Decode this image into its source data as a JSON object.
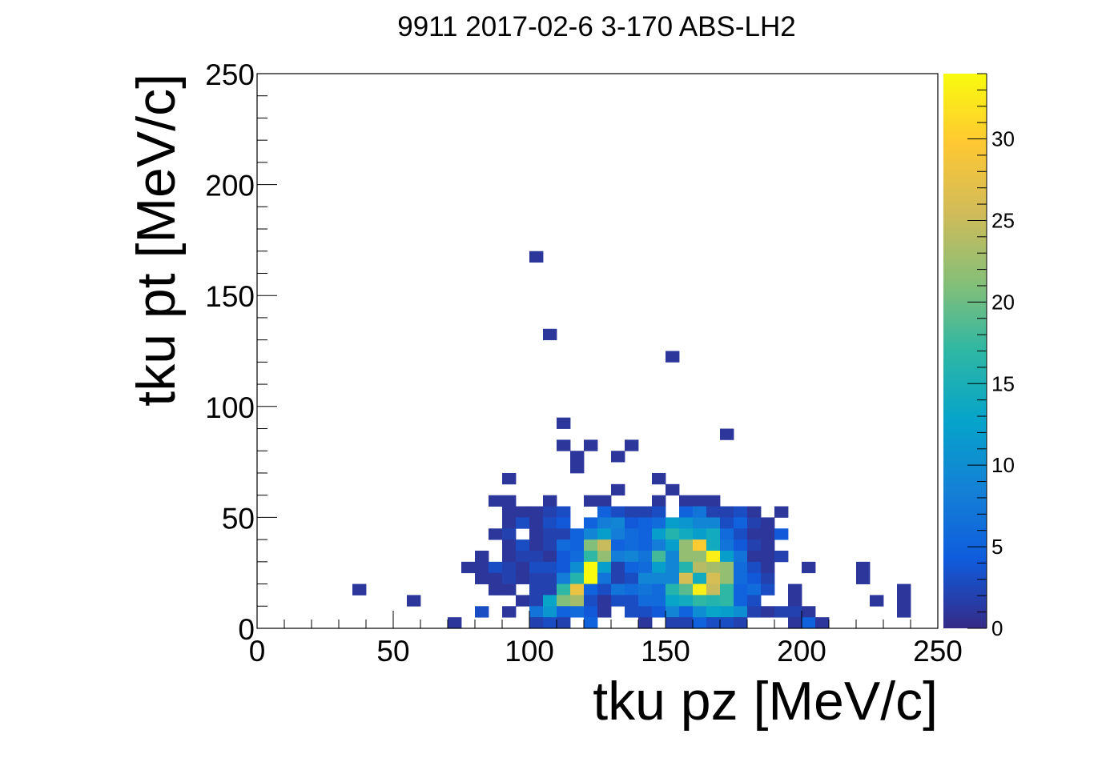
{
  "chart_data": {
    "type": "heatmap",
    "title": "9911 2017-02-6 3-170 ABS-LH2",
    "xlabel": "tku pz [MeV/c]",
    "ylabel": "tku pt [MeV/c]",
    "xlim": [
      0,
      250
    ],
    "ylim": [
      0,
      250
    ],
    "x_ticks": [
      "0",
      "50",
      "100",
      "150",
      "200",
      "250"
    ],
    "y_ticks": [
      "0",
      "50",
      "100",
      "150",
      "200",
      "250"
    ],
    "bin_width": 5,
    "bin_height": 5,
    "colorbar": {
      "range": [
        0,
        34
      ],
      "ticks": [
        "0",
        "5",
        "10",
        "15",
        "20",
        "25",
        "30"
      ],
      "palette": [
        "#352a87",
        "#0f5cdd",
        "#1481d6",
        "#06a4ca",
        "#2eb7a4",
        "#87bf77",
        "#d1bb59",
        "#fec832",
        "#f9fb0e"
      ]
    },
    "cells": [
      {
        "x": 102.5,
        "y": 167.5,
        "v": 1
      },
      {
        "x": 107.5,
        "y": 132.5,
        "v": 1
      },
      {
        "x": 152.5,
        "y": 122.5,
        "v": 1
      },
      {
        "x": 112.5,
        "y": 92.5,
        "v": 1
      },
      {
        "x": 172.5,
        "y": 87.5,
        "v": 1
      },
      {
        "x": 112.5,
        "y": 82.5,
        "v": 1
      },
      {
        "x": 122.5,
        "y": 82.5,
        "v": 1
      },
      {
        "x": 137.5,
        "y": 82.5,
        "v": 1
      },
      {
        "x": 117.5,
        "y": 77.5,
        "v": 1
      },
      {
        "x": 132.5,
        "y": 77.5,
        "v": 1
      },
      {
        "x": 117.5,
        "y": 72.5,
        "v": 1
      },
      {
        "x": 92.5,
        "y": 67.5,
        "v": 1
      },
      {
        "x": 147.5,
        "y": 67.5,
        "v": 1
      },
      {
        "x": 132.5,
        "y": 62.5,
        "v": 1
      },
      {
        "x": 152.5,
        "y": 62.5,
        "v": 1
      },
      {
        "x": 87.5,
        "y": 57.5,
        "v": 1
      },
      {
        "x": 92.5,
        "y": 57.5,
        "v": 1
      },
      {
        "x": 107.5,
        "y": 57.5,
        "v": 1
      },
      {
        "x": 122.5,
        "y": 57.5,
        "v": 1
      },
      {
        "x": 127.5,
        "y": 57.5,
        "v": 1
      },
      {
        "x": 147.5,
        "y": 57.5,
        "v": 1
      },
      {
        "x": 157.5,
        "y": 57.5,
        "v": 1
      },
      {
        "x": 162.5,
        "y": 57.5,
        "v": 1
      },
      {
        "x": 167.5,
        "y": 57.5,
        "v": 1
      },
      {
        "x": 92.5,
        "y": 52.5,
        "v": 1
      },
      {
        "x": 97.5,
        "y": 52.5,
        "v": 1
      },
      {
        "x": 102.5,
        "y": 52.5,
        "v": 1
      },
      {
        "x": 107.5,
        "y": 52.5,
        "v": 2
      },
      {
        "x": 112.5,
        "y": 52.5,
        "v": 3
      },
      {
        "x": 127.5,
        "y": 52.5,
        "v": 5
      },
      {
        "x": 132.5,
        "y": 52.5,
        "v": 3
      },
      {
        "x": 137.5,
        "y": 52.5,
        "v": 2
      },
      {
        "x": 142.5,
        "y": 52.5,
        "v": 2
      },
      {
        "x": 147.5,
        "y": 52.5,
        "v": 3
      },
      {
        "x": 157.5,
        "y": 52.5,
        "v": 5
      },
      {
        "x": 162.5,
        "y": 52.5,
        "v": 7
      },
      {
        "x": 167.5,
        "y": 52.5,
        "v": 2
      },
      {
        "x": 172.5,
        "y": 52.5,
        "v": 2
      },
      {
        "x": 177.5,
        "y": 52.5,
        "v": 3
      },
      {
        "x": 182.5,
        "y": 52.5,
        "v": 1
      },
      {
        "x": 192.5,
        "y": 52.5,
        "v": 1
      },
      {
        "x": 92.5,
        "y": 47.5,
        "v": 1
      },
      {
        "x": 97.5,
        "y": 47.5,
        "v": 3
      },
      {
        "x": 102.5,
        "y": 47.5,
        "v": 1
      },
      {
        "x": 107.5,
        "y": 47.5,
        "v": 3
      },
      {
        "x": 112.5,
        "y": 47.5,
        "v": 4
      },
      {
        "x": 122.5,
        "y": 47.5,
        "v": 5
      },
      {
        "x": 127.5,
        "y": 47.5,
        "v": 8
      },
      {
        "x": 132.5,
        "y": 47.5,
        "v": 9
      },
      {
        "x": 137.5,
        "y": 47.5,
        "v": 4
      },
      {
        "x": 142.5,
        "y": 47.5,
        "v": 5
      },
      {
        "x": 147.5,
        "y": 47.5,
        "v": 6
      },
      {
        "x": 152.5,
        "y": 47.5,
        "v": 12
      },
      {
        "x": 157.5,
        "y": 47.5,
        "v": 11
      },
      {
        "x": 162.5,
        "y": 47.5,
        "v": 9
      },
      {
        "x": 167.5,
        "y": 47.5,
        "v": 9
      },
      {
        "x": 172.5,
        "y": 47.5,
        "v": 3
      },
      {
        "x": 177.5,
        "y": 47.5,
        "v": 5
      },
      {
        "x": 182.5,
        "y": 47.5,
        "v": 2
      },
      {
        "x": 187.5,
        "y": 47.5,
        "v": 1
      },
      {
        "x": 87.5,
        "y": 42.5,
        "v": 1
      },
      {
        "x": 92.5,
        "y": 42.5,
        "v": 2
      },
      {
        "x": 102.5,
        "y": 42.5,
        "v": 1
      },
      {
        "x": 107.5,
        "y": 42.5,
        "v": 2
      },
      {
        "x": 112.5,
        "y": 42.5,
        "v": 2
      },
      {
        "x": 117.5,
        "y": 42.5,
        "v": 5
      },
      {
        "x": 122.5,
        "y": 42.5,
        "v": 9
      },
      {
        "x": 127.5,
        "y": 42.5,
        "v": 12
      },
      {
        "x": 132.5,
        "y": 42.5,
        "v": 8
      },
      {
        "x": 137.5,
        "y": 42.5,
        "v": 6
      },
      {
        "x": 142.5,
        "y": 42.5,
        "v": 5
      },
      {
        "x": 147.5,
        "y": 42.5,
        "v": 12
      },
      {
        "x": 152.5,
        "y": 42.5,
        "v": 16
      },
      {
        "x": 157.5,
        "y": 42.5,
        "v": 14
      },
      {
        "x": 162.5,
        "y": 42.5,
        "v": 12
      },
      {
        "x": 167.5,
        "y": 42.5,
        "v": 14
      },
      {
        "x": 172.5,
        "y": 42.5,
        "v": 6
      },
      {
        "x": 177.5,
        "y": 42.5,
        "v": 3
      },
      {
        "x": 182.5,
        "y": 42.5,
        "v": 1
      },
      {
        "x": 187.5,
        "y": 42.5,
        "v": 1
      },
      {
        "x": 192.5,
        "y": 42.5,
        "v": 4
      },
      {
        "x": 92.5,
        "y": 37.5,
        "v": 1
      },
      {
        "x": 97.5,
        "y": 37.5,
        "v": 3
      },
      {
        "x": 102.5,
        "y": 37.5,
        "v": 1
      },
      {
        "x": 107.5,
        "y": 37.5,
        "v": 2
      },
      {
        "x": 112.5,
        "y": 37.5,
        "v": 6
      },
      {
        "x": 117.5,
        "y": 37.5,
        "v": 5
      },
      {
        "x": 122.5,
        "y": 37.5,
        "v": 21
      },
      {
        "x": 127.5,
        "y": 37.5,
        "v": 25
      },
      {
        "x": 132.5,
        "y": 37.5,
        "v": 5
      },
      {
        "x": 137.5,
        "y": 37.5,
        "v": 6
      },
      {
        "x": 142.5,
        "y": 37.5,
        "v": 5
      },
      {
        "x": 147.5,
        "y": 37.5,
        "v": 8
      },
      {
        "x": 152.5,
        "y": 37.5,
        "v": 12
      },
      {
        "x": 157.5,
        "y": 37.5,
        "v": 22
      },
      {
        "x": 162.5,
        "y": 37.5,
        "v": 30
      },
      {
        "x": 167.5,
        "y": 37.5,
        "v": 14
      },
      {
        "x": 172.5,
        "y": 37.5,
        "v": 7
      },
      {
        "x": 177.5,
        "y": 37.5,
        "v": 4
      },
      {
        "x": 182.5,
        "y": 37.5,
        "v": 2
      },
      {
        "x": 187.5,
        "y": 37.5,
        "v": 1
      },
      {
        "x": 82.5,
        "y": 32.5,
        "v": 1
      },
      {
        "x": 92.5,
        "y": 32.5,
        "v": 1
      },
      {
        "x": 97.5,
        "y": 32.5,
        "v": 2
      },
      {
        "x": 102.5,
        "y": 32.5,
        "v": 2
      },
      {
        "x": 107.5,
        "y": 32.5,
        "v": 1
      },
      {
        "x": 112.5,
        "y": 32.5,
        "v": 4
      },
      {
        "x": 117.5,
        "y": 32.5,
        "v": 6
      },
      {
        "x": 122.5,
        "y": 32.5,
        "v": 17
      },
      {
        "x": 127.5,
        "y": 32.5,
        "v": 22
      },
      {
        "x": 132.5,
        "y": 32.5,
        "v": 8
      },
      {
        "x": 137.5,
        "y": 32.5,
        "v": 9
      },
      {
        "x": 142.5,
        "y": 32.5,
        "v": 7
      },
      {
        "x": 147.5,
        "y": 32.5,
        "v": 18
      },
      {
        "x": 152.5,
        "y": 32.5,
        "v": 9
      },
      {
        "x": 157.5,
        "y": 32.5,
        "v": 22
      },
      {
        "x": 162.5,
        "y": 32.5,
        "v": 22
      },
      {
        "x": 167.5,
        "y": 32.5,
        "v": 33
      },
      {
        "x": 172.5,
        "y": 32.5,
        "v": 12
      },
      {
        "x": 177.5,
        "y": 32.5,
        "v": 7
      },
      {
        "x": 182.5,
        "y": 32.5,
        "v": 1
      },
      {
        "x": 187.5,
        "y": 32.5,
        "v": 1
      },
      {
        "x": 192.5,
        "y": 32.5,
        "v": 2
      },
      {
        "x": 77.5,
        "y": 27.5,
        "v": 1
      },
      {
        "x": 82.5,
        "y": 27.5,
        "v": 1
      },
      {
        "x": 87.5,
        "y": 27.5,
        "v": 3
      },
      {
        "x": 92.5,
        "y": 27.5,
        "v": 2
      },
      {
        "x": 97.5,
        "y": 27.5,
        "v": 1
      },
      {
        "x": 102.5,
        "y": 27.5,
        "v": 3
      },
      {
        "x": 107.5,
        "y": 27.5,
        "v": 3
      },
      {
        "x": 112.5,
        "y": 27.5,
        "v": 4
      },
      {
        "x": 117.5,
        "y": 27.5,
        "v": 10
      },
      {
        "x": 122.5,
        "y": 27.5,
        "v": 34
      },
      {
        "x": 127.5,
        "y": 27.5,
        "v": 12
      },
      {
        "x": 132.5,
        "y": 27.5,
        "v": 2
      },
      {
        "x": 137.5,
        "y": 27.5,
        "v": 5
      },
      {
        "x": 142.5,
        "y": 27.5,
        "v": 6
      },
      {
        "x": 147.5,
        "y": 27.5,
        "v": 12
      },
      {
        "x": 152.5,
        "y": 27.5,
        "v": 9
      },
      {
        "x": 157.5,
        "y": 27.5,
        "v": 16
      },
      {
        "x": 162.5,
        "y": 27.5,
        "v": 24
      },
      {
        "x": 167.5,
        "y": 27.5,
        "v": 23
      },
      {
        "x": 172.5,
        "y": 27.5,
        "v": 22
      },
      {
        "x": 177.5,
        "y": 27.5,
        "v": 6
      },
      {
        "x": 182.5,
        "y": 27.5,
        "v": 3
      },
      {
        "x": 187.5,
        "y": 27.5,
        "v": 1
      },
      {
        "x": 202.5,
        "y": 27.5,
        "v": 1
      },
      {
        "x": 222.5,
        "y": 27.5,
        "v": 1
      },
      {
        "x": 82.5,
        "y": 22.5,
        "v": 1
      },
      {
        "x": 87.5,
        "y": 22.5,
        "v": 1
      },
      {
        "x": 92.5,
        "y": 22.5,
        "v": 2
      },
      {
        "x": 97.5,
        "y": 22.5,
        "v": 1
      },
      {
        "x": 102.5,
        "y": 22.5,
        "v": 2
      },
      {
        "x": 107.5,
        "y": 22.5,
        "v": 2
      },
      {
        "x": 112.5,
        "y": 22.5,
        "v": 8
      },
      {
        "x": 117.5,
        "y": 22.5,
        "v": 16
      },
      {
        "x": 122.5,
        "y": 22.5,
        "v": 34
      },
      {
        "x": 127.5,
        "y": 22.5,
        "v": 7
      },
      {
        "x": 132.5,
        "y": 22.5,
        "v": 2
      },
      {
        "x": 137.5,
        "y": 22.5,
        "v": 3
      },
      {
        "x": 142.5,
        "y": 22.5,
        "v": 9
      },
      {
        "x": 147.5,
        "y": 22.5,
        "v": 9
      },
      {
        "x": 152.5,
        "y": 22.5,
        "v": 9
      },
      {
        "x": 157.5,
        "y": 22.5,
        "v": 26
      },
      {
        "x": 162.5,
        "y": 22.5,
        "v": 14
      },
      {
        "x": 167.5,
        "y": 22.5,
        "v": 26
      },
      {
        "x": 172.5,
        "y": 22.5,
        "v": 22
      },
      {
        "x": 177.5,
        "y": 22.5,
        "v": 6
      },
      {
        "x": 182.5,
        "y": 22.5,
        "v": 4
      },
      {
        "x": 187.5,
        "y": 22.5,
        "v": 2
      },
      {
        "x": 222.5,
        "y": 22.5,
        "v": 1
      },
      {
        "x": 37.5,
        "y": 17.5,
        "v": 1
      },
      {
        "x": 87.5,
        "y": 17.5,
        "v": 1
      },
      {
        "x": 92.5,
        "y": 17.5,
        "v": 1
      },
      {
        "x": 102.5,
        "y": 17.5,
        "v": 2
      },
      {
        "x": 107.5,
        "y": 17.5,
        "v": 2
      },
      {
        "x": 112.5,
        "y": 17.5,
        "v": 17
      },
      {
        "x": 117.5,
        "y": 17.5,
        "v": 28
      },
      {
        "x": 122.5,
        "y": 17.5,
        "v": 5
      },
      {
        "x": 127.5,
        "y": 17.5,
        "v": 3
      },
      {
        "x": 132.5,
        "y": 17.5,
        "v": 7
      },
      {
        "x": 137.5,
        "y": 17.5,
        "v": 6
      },
      {
        "x": 142.5,
        "y": 17.5,
        "v": 7
      },
      {
        "x": 147.5,
        "y": 17.5,
        "v": 6
      },
      {
        "x": 152.5,
        "y": 17.5,
        "v": 16
      },
      {
        "x": 157.5,
        "y": 17.5,
        "v": 19
      },
      {
        "x": 162.5,
        "y": 17.5,
        "v": 33
      },
      {
        "x": 167.5,
        "y": 17.5,
        "v": 25
      },
      {
        "x": 172.5,
        "y": 17.5,
        "v": 17
      },
      {
        "x": 177.5,
        "y": 17.5,
        "v": 5
      },
      {
        "x": 182.5,
        "y": 17.5,
        "v": 6
      },
      {
        "x": 187.5,
        "y": 17.5,
        "v": 3
      },
      {
        "x": 197.5,
        "y": 17.5,
        "v": 1
      },
      {
        "x": 237.5,
        "y": 17.5,
        "v": 1
      },
      {
        "x": 57.5,
        "y": 12.5,
        "v": 1
      },
      {
        "x": 97.5,
        "y": 12.5,
        "v": 1
      },
      {
        "x": 102.5,
        "y": 12.5,
        "v": 2
      },
      {
        "x": 107.5,
        "y": 12.5,
        "v": 13
      },
      {
        "x": 112.5,
        "y": 12.5,
        "v": 21
      },
      {
        "x": 117.5,
        "y": 12.5,
        "v": 23
      },
      {
        "x": 122.5,
        "y": 12.5,
        "v": 3
      },
      {
        "x": 127.5,
        "y": 12.5,
        "v": 1
      },
      {
        "x": 132.5,
        "y": 12.5,
        "v": 3
      },
      {
        "x": 137.5,
        "y": 12.5,
        "v": 3
      },
      {
        "x": 142.5,
        "y": 12.5,
        "v": 6
      },
      {
        "x": 147.5,
        "y": 12.5,
        "v": 6
      },
      {
        "x": 152.5,
        "y": 12.5,
        "v": 13
      },
      {
        "x": 157.5,
        "y": 12.5,
        "v": 14
      },
      {
        "x": 162.5,
        "y": 12.5,
        "v": 17
      },
      {
        "x": 167.5,
        "y": 12.5,
        "v": 16
      },
      {
        "x": 172.5,
        "y": 12.5,
        "v": 17
      },
      {
        "x": 177.5,
        "y": 12.5,
        "v": 5
      },
      {
        "x": 182.5,
        "y": 12.5,
        "v": 3
      },
      {
        "x": 197.5,
        "y": 12.5,
        "v": 1
      },
      {
        "x": 227.5,
        "y": 12.5,
        "v": 1
      },
      {
        "x": 237.5,
        "y": 12.5,
        "v": 1
      },
      {
        "x": 82.5,
        "y": 7.5,
        "v": 3
      },
      {
        "x": 92.5,
        "y": 7.5,
        "v": 1
      },
      {
        "x": 102.5,
        "y": 7.5,
        "v": 7
      },
      {
        "x": 107.5,
        "y": 7.5,
        "v": 11
      },
      {
        "x": 112.5,
        "y": 7.5,
        "v": 5
      },
      {
        "x": 117.5,
        "y": 7.5,
        "v": 6
      },
      {
        "x": 122.5,
        "y": 7.5,
        "v": 4
      },
      {
        "x": 127.5,
        "y": 7.5,
        "v": 1
      },
      {
        "x": 137.5,
        "y": 7.5,
        "v": 3
      },
      {
        "x": 142.5,
        "y": 7.5,
        "v": 3
      },
      {
        "x": 147.5,
        "y": 7.5,
        "v": 4
      },
      {
        "x": 152.5,
        "y": 7.5,
        "v": 9
      },
      {
        "x": 157.5,
        "y": 7.5,
        "v": 5
      },
      {
        "x": 162.5,
        "y": 7.5,
        "v": 10
      },
      {
        "x": 167.5,
        "y": 7.5,
        "v": 13
      },
      {
        "x": 172.5,
        "y": 7.5,
        "v": 12
      },
      {
        "x": 177.5,
        "y": 7.5,
        "v": 10
      },
      {
        "x": 182.5,
        "y": 7.5,
        "v": 2
      },
      {
        "x": 187.5,
        "y": 7.5,
        "v": 1
      },
      {
        "x": 192.5,
        "y": 7.5,
        "v": 2
      },
      {
        "x": 197.5,
        "y": 7.5,
        "v": 2
      },
      {
        "x": 202.5,
        "y": 7.5,
        "v": 1
      },
      {
        "x": 237.5,
        "y": 7.5,
        "v": 1
      },
      {
        "x": 72.5,
        "y": 2.5,
        "v": 1
      },
      {
        "x": 102.5,
        "y": 2.5,
        "v": 2
      },
      {
        "x": 107.5,
        "y": 2.5,
        "v": 3
      },
      {
        "x": 112.5,
        "y": 2.5,
        "v": 2
      },
      {
        "x": 122.5,
        "y": 2.5,
        "v": 5
      },
      {
        "x": 142.5,
        "y": 2.5,
        "v": 1
      },
      {
        "x": 152.5,
        "y": 2.5,
        "v": 2
      },
      {
        "x": 157.5,
        "y": 2.5,
        "v": 2
      },
      {
        "x": 162.5,
        "y": 2.5,
        "v": 5
      },
      {
        "x": 167.5,
        "y": 2.5,
        "v": 3
      },
      {
        "x": 172.5,
        "y": 2.5,
        "v": 3
      },
      {
        "x": 177.5,
        "y": 2.5,
        "v": 2
      },
      {
        "x": 197.5,
        "y": 2.5,
        "v": 1
      },
      {
        "x": 202.5,
        "y": 2.5,
        "v": 5
      },
      {
        "x": 207.5,
        "y": 2.5,
        "v": 1
      }
    ]
  }
}
